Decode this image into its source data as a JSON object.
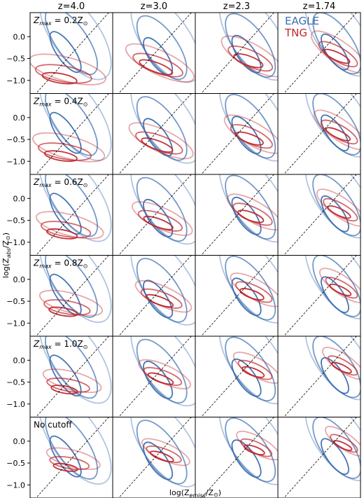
{
  "chart_data": {
    "type": "contour",
    "columns": [
      "z=4.0",
      "z=3.0",
      "z=2.3",
      "z=1.74"
    ],
    "rows": [
      {
        "label_main": "Z",
        "label_sub": "max",
        "label_rest": " = 0.2Z",
        "label_sun": "⊙"
      },
      {
        "label_main": "Z",
        "label_sub": "max",
        "label_rest": " = 0.4Z",
        "label_sun": "⊙"
      },
      {
        "label_main": "Z",
        "label_sub": "max",
        "label_rest": " = 0.6Z",
        "label_sun": "⊙"
      },
      {
        "label_main": "Z",
        "label_sub": "max",
        "label_rest": " = 0.8Z",
        "label_sun": "⊙"
      },
      {
        "label_main": "Z",
        "label_sub": "max",
        "label_rest": " = 1.0Z",
        "label_sun": "⊙"
      },
      {
        "label_main": "No cutoff",
        "label_sub": "",
        "label_rest": "",
        "label_sun": ""
      }
    ],
    "xticks": [
      "−1",
      "0"
    ],
    "yticks": [
      "0.0",
      "−0.5",
      "−1.0"
    ],
    "xlim": [
      -1.45,
      0.65
    ],
    "ylim": [
      -1.3,
      0.55
    ],
    "xlabel": {
      "pre": "log(Z",
      "sub": "emiss",
      "post": "/Z",
      "sun": "⊙",
      "end": ")"
    },
    "ylabel": {
      "pre": "log(Z",
      "sub": "abs",
      "post": "/Z",
      "sun": "⊙",
      "end": ")"
    },
    "series": [
      {
        "name": "EAGLE",
        "color": "#3b6fb0"
      },
      {
        "name": "TNG",
        "color": "#c0272d"
      }
    ],
    "reference_line": "one-to-one (dashed)",
    "contours": {
      "EAGLE": [
        [
          {
            "cx": -0.55,
            "cy": -0.35,
            "rx": 0.22,
            "ry": 0.55,
            "tilt": 35
          },
          {
            "cx": -0.4,
            "cy": -0.1,
            "rx": 0.4,
            "ry": 0.9,
            "tilt": 35
          },
          {
            "cx": -0.3,
            "cy": 0.05,
            "rx": 0.6,
            "ry": 1.2,
            "tilt": 35
          }
        ],
        [
          {
            "cx": -0.3,
            "cy": -0.45,
            "rx": 0.22,
            "ry": 0.5,
            "tilt": 35
          },
          {
            "cx": -0.2,
            "cy": -0.25,
            "rx": 0.4,
            "ry": 0.85,
            "tilt": 35
          },
          {
            "cx": -0.1,
            "cy": -0.05,
            "rx": 0.6,
            "ry": 1.15,
            "tilt": 35
          }
        ],
        [
          {
            "cx": -0.15,
            "cy": -0.4,
            "rx": 0.22,
            "ry": 0.5,
            "tilt": 35
          },
          {
            "cx": -0.05,
            "cy": -0.2,
            "rx": 0.4,
            "ry": 0.85,
            "tilt": 35
          },
          {
            "cx": 0.05,
            "cy": 0.0,
            "rx": 0.6,
            "ry": 1.15,
            "tilt": 35
          }
        ],
        [
          {
            "cx": 0.0,
            "cy": -0.35,
            "rx": 0.2,
            "ry": 0.48,
            "tilt": 35
          },
          {
            "cx": 0.05,
            "cy": -0.15,
            "rx": 0.38,
            "ry": 0.82,
            "tilt": 35
          },
          {
            "cx": 0.1,
            "cy": 0.05,
            "rx": 0.58,
            "ry": 1.1,
            "tilt": 35
          }
        ]
      ],
      "TNG": [
        [
          {
            "cx": -0.7,
            "cy": -0.95,
            "rx": 0.12,
            "ry": 0.4,
            "tilt": 80
          },
          {
            "cx": -0.6,
            "cy": -0.85,
            "rx": 0.2,
            "ry": 0.65,
            "tilt": 80
          },
          {
            "cx": -0.5,
            "cy": -0.75,
            "rx": 0.3,
            "ry": 0.9,
            "tilt": 75
          }
        ],
        [
          {
            "cx": -0.35,
            "cy": -0.7,
            "rx": 0.12,
            "ry": 0.4,
            "tilt": 70
          },
          {
            "cx": -0.3,
            "cy": -0.65,
            "rx": 0.2,
            "ry": 0.6,
            "tilt": 70
          },
          {
            "cx": -0.25,
            "cy": -0.6,
            "rx": 0.3,
            "ry": 0.85,
            "tilt": 65
          }
        ],
        [
          {
            "cx": -0.1,
            "cy": -0.55,
            "rx": 0.12,
            "ry": 0.35,
            "tilt": 70
          },
          {
            "cx": -0.05,
            "cy": -0.5,
            "rx": 0.2,
            "ry": 0.55,
            "tilt": 65
          },
          {
            "cx": 0.0,
            "cy": -0.45,
            "rx": 0.3,
            "ry": 0.8,
            "tilt": 60
          }
        ],
        [
          {
            "cx": 0.05,
            "cy": -0.45,
            "rx": 0.1,
            "ry": 0.32,
            "tilt": 65
          },
          {
            "cx": 0.08,
            "cy": -0.4,
            "rx": 0.18,
            "ry": 0.5,
            "tilt": 60
          },
          {
            "cx": 0.1,
            "cy": -0.35,
            "rx": 0.28,
            "ry": 0.75,
            "tilt": 55
          }
        ]
      ]
    }
  }
}
